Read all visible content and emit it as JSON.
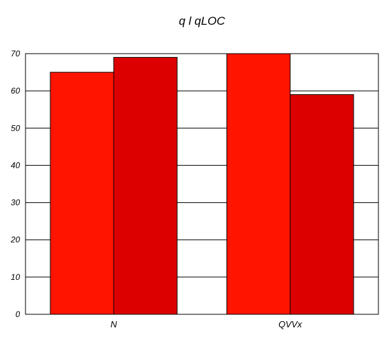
{
  "chart_data": {
    "type": "bar",
    "title": "q l qLOC",
    "categories": [
      "N",
      "QVVx"
    ],
    "series": [
      {
        "color": "#ff1400",
        "values": [
          65,
          70
        ]
      },
      {
        "color": "#dd0000",
        "values": [
          69,
          59
        ]
      }
    ],
    "ylim": [
      0,
      70
    ],
    "yticks": [
      0,
      10,
      20,
      30,
      40,
      50,
      60,
      70
    ],
    "grid": true,
    "legend": "none"
  }
}
